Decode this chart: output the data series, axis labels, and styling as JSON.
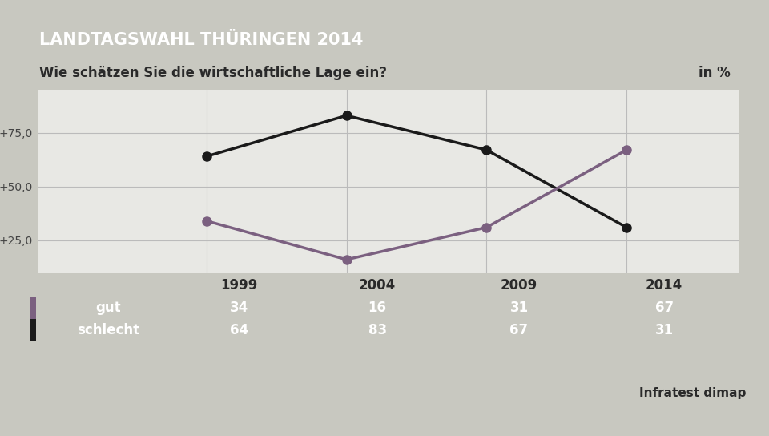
{
  "title": "LANDTAGSWAHL THÜRINGEN 2014",
  "subtitle": "Wie schätzen Sie die wirtschaftliche Lage ein?",
  "subtitle_right": "in %",
  "years": [
    1999,
    2004,
    2009,
    2014
  ],
  "gut_values": [
    34,
    16,
    31,
    67
  ],
  "schlecht_values": [
    64,
    83,
    67,
    31
  ],
  "gut_color": "#7b6080",
  "schlecht_color": "#1a1a1a",
  "title_bg_color": "#1a3a6b",
  "title_text_color": "#ffffff",
  "subtitle_bg_color": "#ffffff",
  "subtitle_text_color": "#2a2a2a",
  "chart_bg_color": "#e8e8e4",
  "table_row1_color": "#4a7fa8",
  "table_row2_color": "#3d6d96",
  "table_header_bg": "#f0f0f0",
  "table_text_color": "#ffffff",
  "table_header_text": "#2a2a2a",
  "source_text": "Infratest dimap",
  "yticks": [
    25.0,
    50.0,
    75.0
  ],
  "ytick_labels": [
    "+25,0",
    "+50,0",
    "+75,0"
  ],
  "ylim": [
    10,
    95
  ],
  "background_color": "#c8c8c0"
}
